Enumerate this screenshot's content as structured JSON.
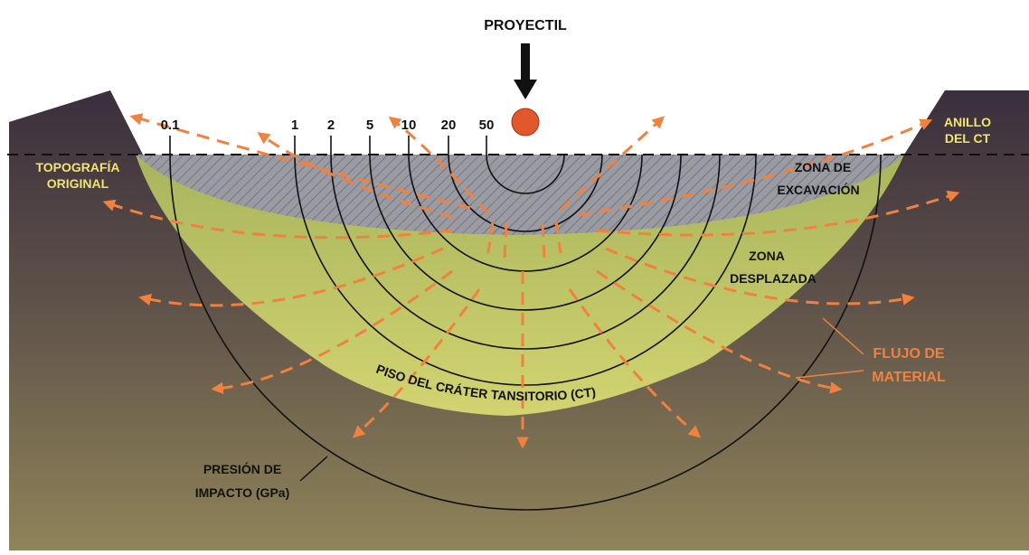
{
  "title": "PROYECTIL",
  "pressure_label": "PRESIÓN DE IMPACTO (GPa)",
  "pressure_label_lines": [
    "PRESIÓN DE",
    "IMPACTO (GPa)"
  ],
  "pressure_values": [
    "0.1",
    "1",
    "2",
    "5",
    "10",
    "20",
    "50"
  ],
  "labels": {
    "original_topography": [
      "TOPOGRAFÍA",
      "ORIGINAL"
    ],
    "ct_rim": [
      "ANILLO",
      "DEL CT"
    ],
    "excavation_zone": [
      "ZONA DE",
      "EXCAVACIÓN"
    ],
    "displaced_zone": [
      "ZONA",
      "DESPLAZADA"
    ],
    "material_flow": [
      "FLUJO DE",
      "MATERIAL"
    ],
    "crater_floor": "PISO DEL CRÁTER TANSITORIO (CT)"
  },
  "colors": {
    "ground_top": "#3a2f3d",
    "ground_bottom": "#8f8459",
    "displaced_zone": "#b9c46a",
    "excavation_zone": "#9a9aa2",
    "flow_arrows": "#f0813f",
    "projectile": "#e2572b",
    "label_yellow": "#f2e56b"
  },
  "icons": [
    "projectile-sphere",
    "down-arrow-icon"
  ]
}
